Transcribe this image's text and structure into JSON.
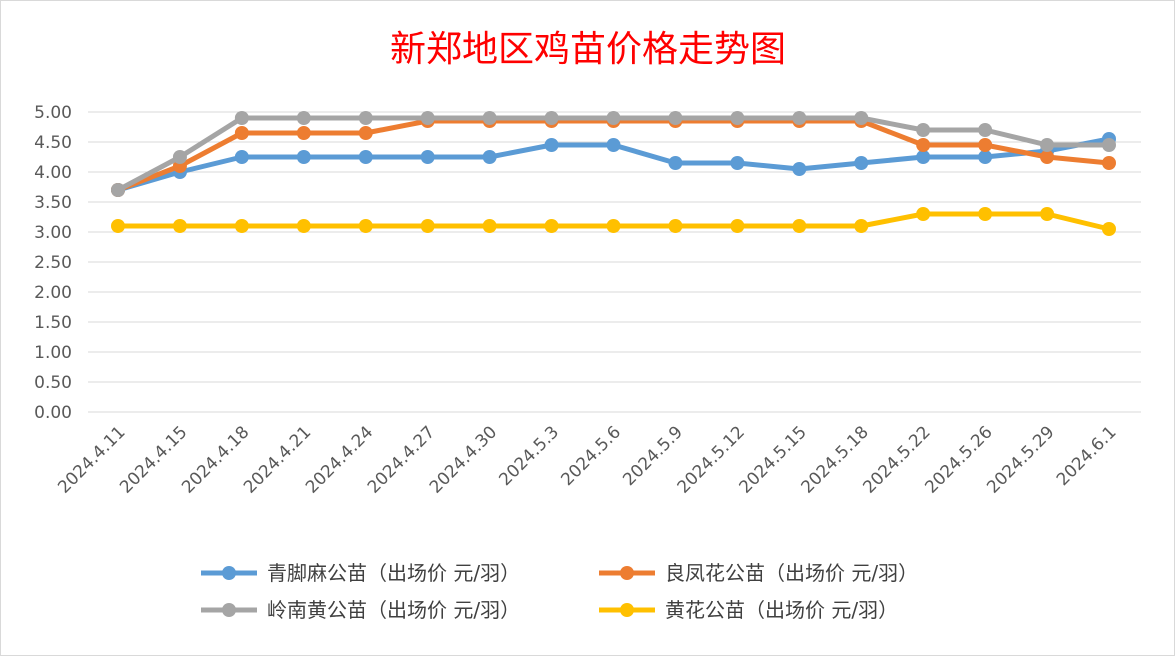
{
  "chart_data": {
    "type": "line",
    "title": "新郑地区鸡苗价格走势图",
    "xlabel": "",
    "ylabel": "",
    "ylim": [
      0,
      5
    ],
    "y_ticks": [
      "0.00",
      "0.50",
      "1.00",
      "1.50",
      "2.00",
      "2.50",
      "3.00",
      "3.50",
      "4.00",
      "4.50",
      "5.00"
    ],
    "grid": true,
    "legend_position": "bottom",
    "categories": [
      "2024.4.11",
      "2024.4.15",
      "2024.4.18",
      "2024.4.21",
      "2024.4.24",
      "2024.4.27",
      "2024.4.30",
      "2024.5.3",
      "2024.5.6",
      "2024.5.9",
      "2024.5.12",
      "2024.5.15",
      "2024.5.18",
      "2024.5.22",
      "2024.5.26",
      "2024.5.29",
      "2024.6.1"
    ],
    "series": [
      {
        "name": "青脚麻公苗（出场价 元/羽）",
        "color": "#5b9bd5",
        "values": [
          3.7,
          4.0,
          4.25,
          4.25,
          4.25,
          4.25,
          4.25,
          4.45,
          4.45,
          4.15,
          4.15,
          4.05,
          4.15,
          4.25,
          4.25,
          4.35,
          4.55
        ]
      },
      {
        "name": "良凤花公苗（出场价 元/羽）",
        "color": "#ed7d31",
        "values": [
          3.7,
          4.1,
          4.65,
          4.65,
          4.65,
          4.85,
          4.85,
          4.85,
          4.85,
          4.85,
          4.85,
          4.85,
          4.85,
          4.45,
          4.45,
          4.25,
          4.15
        ]
      },
      {
        "name": "岭南黄公苗（出场价 元/羽）",
        "color": "#a5a5a5",
        "values": [
          3.7,
          4.25,
          4.9,
          4.9,
          4.9,
          4.9,
          4.9,
          4.9,
          4.9,
          4.9,
          4.9,
          4.9,
          4.9,
          4.7,
          4.7,
          4.45,
          4.45
        ]
      },
      {
        "name": "黄花公苗（出场价 元/羽）",
        "color": "#ffc000",
        "values": [
          3.1,
          3.1,
          3.1,
          3.1,
          3.1,
          3.1,
          3.1,
          3.1,
          3.1,
          3.1,
          3.1,
          3.1,
          3.1,
          3.3,
          3.3,
          3.3,
          3.05
        ]
      }
    ]
  }
}
